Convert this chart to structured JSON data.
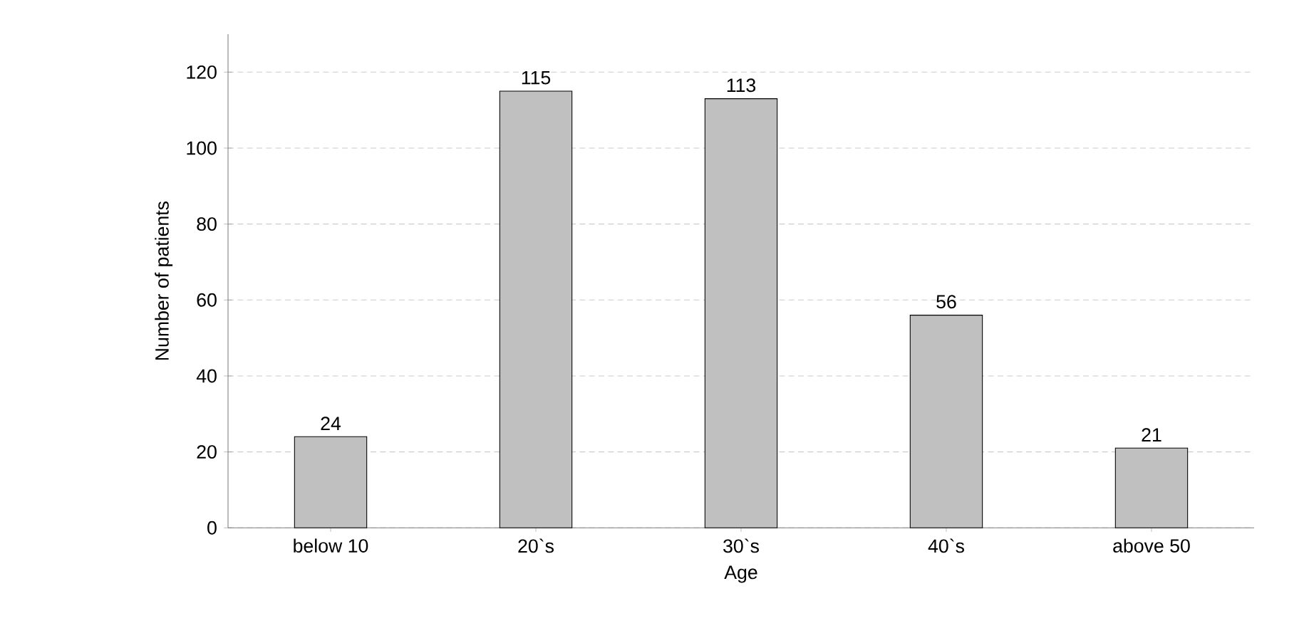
{
  "chart_data": {
    "type": "bar",
    "xlabel": "Age",
    "ylabel": "Number of patients",
    "categories": [
      "below 10",
      "20`s",
      "30`s",
      "40`s",
      "above 50"
    ],
    "values": [
      24,
      115,
      113,
      56,
      21
    ],
    "color": "#c0c0c0",
    "ylim": [
      0,
      130
    ],
    "yticks": [
      0,
      20,
      40,
      60,
      80,
      100,
      120
    ],
    "grid": "y",
    "data_labels": true
  }
}
